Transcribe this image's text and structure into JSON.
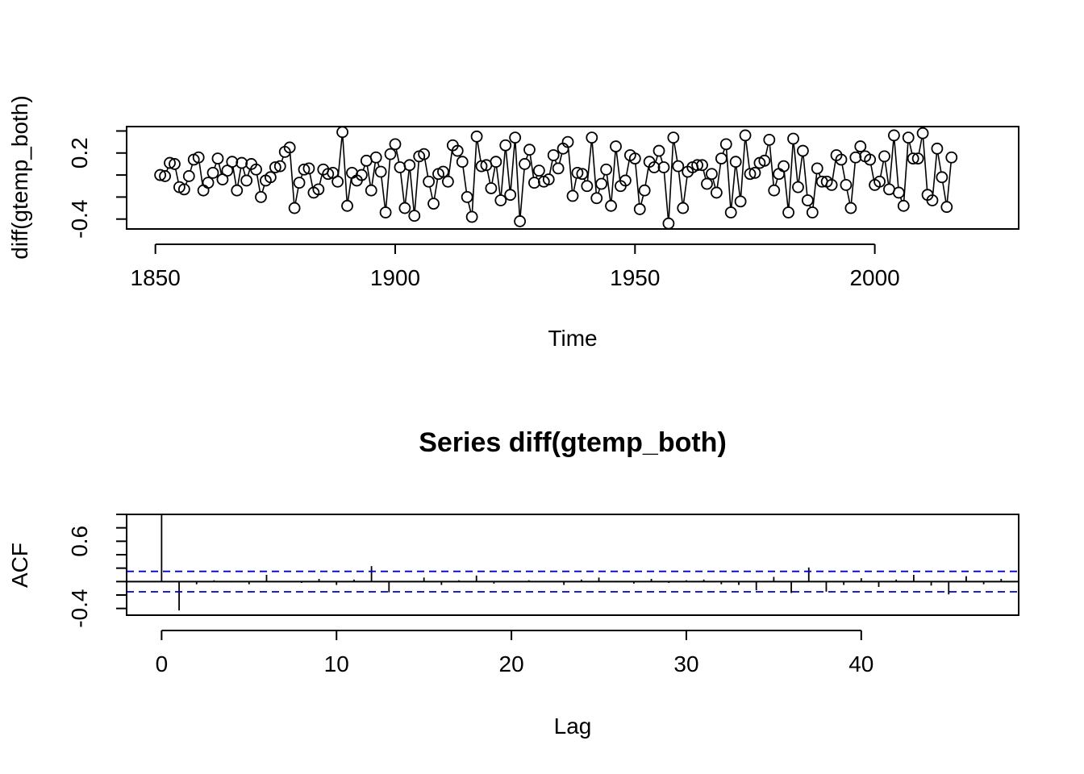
{
  "chart_data": [
    {
      "type": "line",
      "title": "",
      "xlabel": "Time",
      "ylabel": "diff(gtemp_both)",
      "xlim": [
        1844.0,
        2030.0
      ],
      "ylim": [
        -0.49,
        0.44
      ],
      "x_ticks": [
        1850,
        1900,
        1950,
        2000
      ],
      "x_tick_labels": [
        "1850",
        "1900",
        "1950",
        "2000"
      ],
      "y_ticks": [
        -0.4,
        -0.2,
        0.0,
        0.2,
        0.4
      ],
      "y_tick_labels": [
        "-0.4",
        "",
        "",
        "0.2",
        ""
      ],
      "grid": false,
      "markers": "open-circle",
      "series": [
        {
          "x_start": 1851,
          "x_step": 1,
          "values": [
            0.0,
            -0.01,
            0.11,
            0.1,
            -0.11,
            -0.13,
            -0.01,
            0.14,
            0.16,
            -0.14,
            -0.07,
            0.02,
            0.15,
            -0.04,
            0.04,
            0.12,
            -0.14,
            0.11,
            -0.05,
            0.1,
            0.05,
            -0.2,
            -0.05,
            -0.02,
            0.07,
            0.08,
            0.21,
            0.25,
            -0.3,
            -0.07,
            0.05,
            0.06,
            -0.16,
            -0.13,
            0.05,
            0.01,
            0.02,
            -0.06,
            0.39,
            -0.28,
            0.02,
            -0.05,
            0.0,
            0.13,
            -0.14,
            0.16,
            0.03,
            -0.34,
            0.19,
            0.28,
            0.07,
            -0.3,
            0.09,
            -0.37,
            0.17,
            0.19,
            -0.06,
            -0.26,
            0.01,
            0.03,
            -0.06,
            0.27,
            0.22,
            0.12,
            -0.2,
            -0.38,
            0.35,
            0.08,
            0.09,
            -0.12,
            0.12,
            -0.23,
            0.27,
            -0.18,
            0.34,
            -0.42,
            0.1,
            0.23,
            -0.07,
            0.04,
            -0.06,
            -0.04,
            0.18,
            0.06,
            0.24,
            0.3,
            -0.19,
            0.02,
            0.01,
            -0.1,
            0.34,
            -0.21,
            -0.08,
            0.05,
            -0.28,
            0.26,
            -0.1,
            -0.05,
            0.18,
            0.15,
            -0.31,
            -0.14,
            0.12,
            0.07,
            0.22,
            0.07,
            -0.44,
            0.34,
            0.08,
            -0.3,
            0.03,
            0.07,
            0.09,
            0.09,
            -0.08,
            0.01,
            -0.16,
            0.15,
            0.28,
            -0.34,
            0.12,
            -0.24,
            0.36,
            0.01,
            0.02,
            0.11,
            0.13,
            0.32,
            -0.14,
            0.01,
            0.08,
            -0.34,
            0.33,
            -0.11,
            0.22,
            -0.23,
            -0.34,
            0.06,
            -0.06,
            -0.06,
            -0.09,
            0.18,
            0.14,
            -0.09,
            -0.3,
            0.16,
            0.26,
            0.17,
            0.14,
            -0.09,
            -0.06,
            0.17,
            -0.13,
            0.36,
            -0.16,
            -0.28,
            0.34,
            0.15,
            0.15,
            0.38,
            -0.18,
            -0.23,
            0.24,
            -0.02,
            -0.29,
            0.16
          ]
        }
      ]
    },
    {
      "type": "bar",
      "title": "Series  diff(gtemp_both)",
      "xlabel": "Lag",
      "ylabel": "ACF",
      "xlim": [
        -2.0,
        49.0
      ],
      "ylim": [
        -0.5,
        1.0
      ],
      "x_ticks": [
        0,
        10,
        20,
        30,
        40
      ],
      "x_tick_labels": [
        "0",
        "10",
        "20",
        "30",
        "40"
      ],
      "y_ticks": [
        -0.4,
        -0.2,
        0.0,
        0.2,
        0.4,
        0.6,
        0.8,
        1.0
      ],
      "y_tick_labels": [
        "-0.4",
        "",
        "",
        "",
        "",
        "0.6",
        "",
        ""
      ],
      "grid": false,
      "confidence_bound": 0.152,
      "lags": [
        0,
        1,
        2,
        3,
        4,
        5,
        6,
        7,
        8,
        9,
        10,
        11,
        12,
        13,
        14,
        15,
        16,
        17,
        18,
        19,
        20,
        21,
        22,
        23,
        24,
        25,
        26,
        27,
        28,
        29,
        30,
        31,
        32,
        33,
        34,
        35,
        36,
        37,
        38,
        39,
        40,
        41,
        42,
        43,
        44,
        45,
        46,
        47,
        48
      ],
      "values": [
        1.0,
        -0.43,
        -0.04,
        0.02,
        -0.01,
        -0.04,
        0.1,
        -0.01,
        -0.02,
        0.04,
        -0.05,
        0.03,
        0.23,
        -0.16,
        -0.01,
        0.06,
        -0.05,
        0.02,
        0.09,
        -0.03,
        0.01,
        0.02,
        0.01,
        -0.05,
        0.03,
        0.06,
        -0.01,
        -0.03,
        0.04,
        -0.02,
        0.02,
        0.03,
        -0.04,
        -0.05,
        -0.13,
        0.07,
        -0.17,
        0.21,
        -0.15,
        -0.05,
        0.05,
        -0.08,
        0.03,
        0.1,
        -0.06,
        -0.19,
        0.08,
        -0.04,
        0.04
      ]
    }
  ]
}
